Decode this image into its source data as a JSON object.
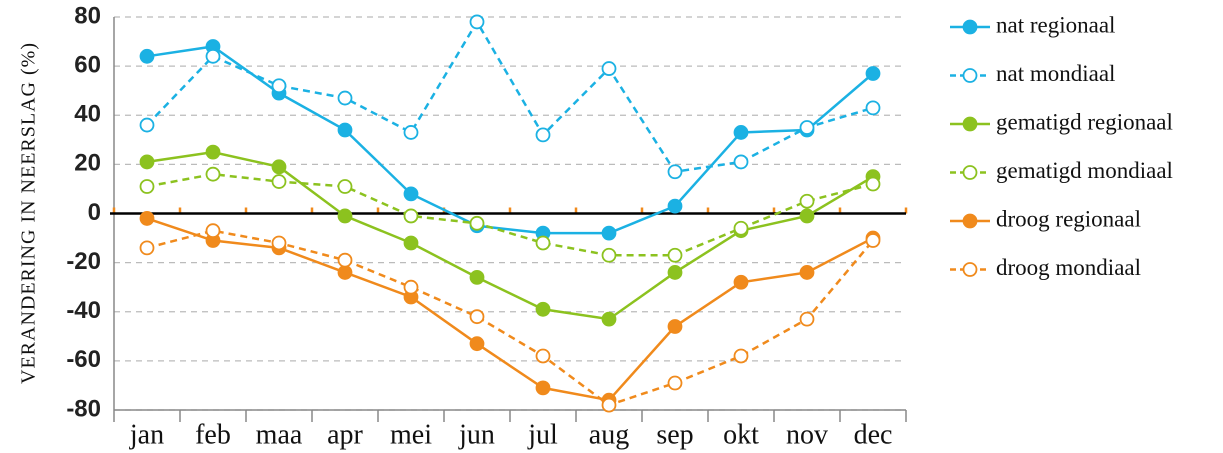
{
  "chart_data": {
    "type": "line",
    "y_label": "VERANDERING IN NEERSLAG (%)",
    "categories": [
      "jan",
      "feb",
      "maa",
      "apr",
      "mei",
      "jun",
      "jul",
      "aug",
      "sep",
      "okt",
      "nov",
      "dec"
    ],
    "ylim": [
      -80,
      80
    ],
    "yticks": [
      80,
      60,
      40,
      20,
      0,
      -20,
      -40,
      -60,
      -80
    ],
    "grid": true,
    "legend": "right",
    "series": [
      {
        "name": "nat regionaal",
        "color": "#1bb1e3",
        "style": "solid",
        "values": [
          64,
          68,
          49,
          34,
          8,
          -5,
          -8,
          -8,
          3,
          33,
          34,
          57
        ]
      },
      {
        "name": "nat mondiaal",
        "color": "#1bb1e3",
        "style": "dashed",
        "values": [
          36,
          64,
          52,
          47,
          33,
          78,
          32,
          59,
          17,
          21,
          35,
          43
        ]
      },
      {
        "name": "gematigd regionaal",
        "color": "#8cc21f",
        "style": "solid",
        "values": [
          21,
          25,
          19,
          -1,
          -12,
          -26,
          -39,
          -43,
          -24,
          -7,
          -1,
          15
        ]
      },
      {
        "name": "gematigd mondiaal",
        "color": "#8cc21f",
        "style": "dashed",
        "values": [
          11,
          16,
          13,
          11,
          -1,
          -4,
          -12,
          -17,
          -17,
          -6,
          5,
          12
        ]
      },
      {
        "name": "droog regionaal",
        "color": "#f08a1c",
        "style": "solid",
        "values": [
          -2,
          -11,
          -14,
          -24,
          -34,
          -53,
          -71,
          -76,
          -46,
          -28,
          -24,
          -10
        ]
      },
      {
        "name": "droog mondiaal",
        "color": "#f08a1c",
        "style": "dashed",
        "values": [
          -14,
          -7,
          -12,
          -19,
          -30,
          -42,
          -58,
          -78,
          -69,
          -58,
          -43,
          -11
        ]
      }
    ]
  }
}
